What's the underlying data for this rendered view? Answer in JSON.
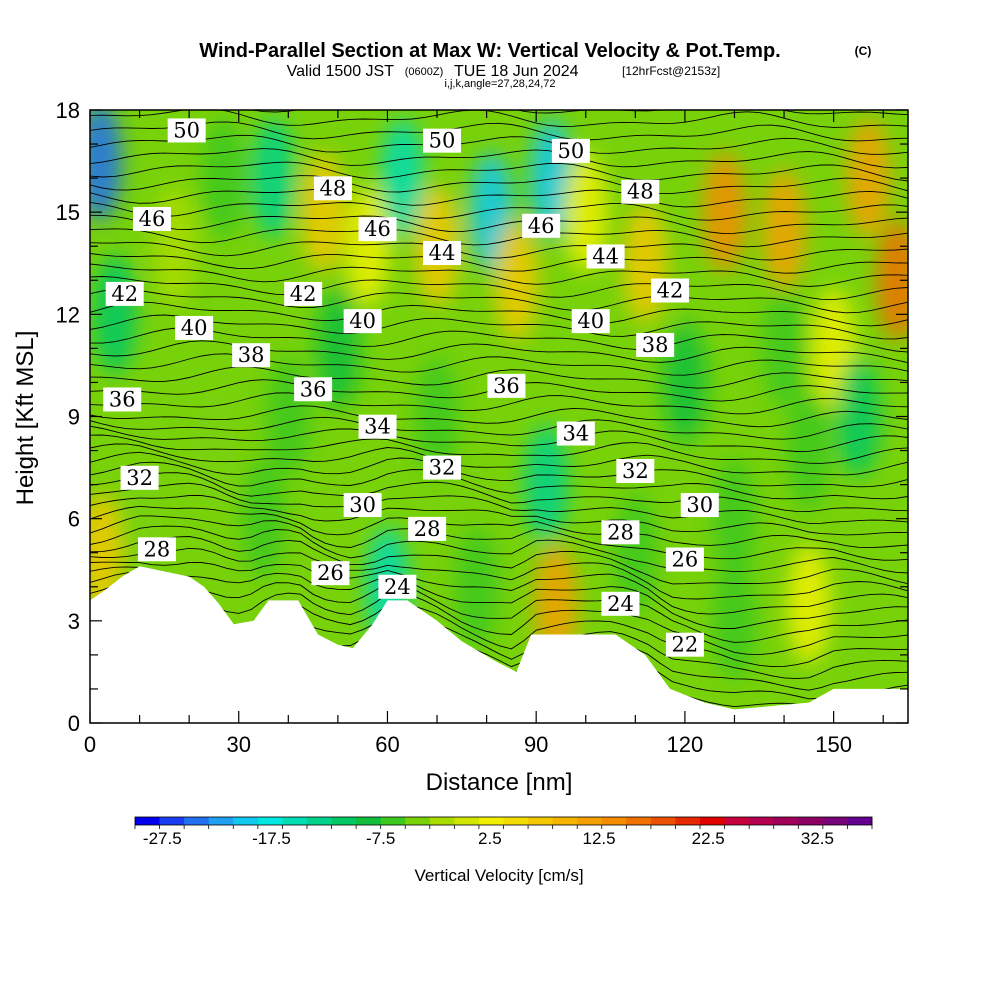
{
  "title": {
    "main": "Wind-Parallel Section at Max W: Vertical Velocity & Pot.Temp.",
    "copyright": "(C)",
    "valid_prefix": "Valid 1500 JST",
    "valid_utc": "(0600Z)",
    "valid_date": "TUE 18 Jun 2024",
    "forecast": "[12hrFcst@2153z]",
    "indices": "i,j,k,angle=27,28,24,72"
  },
  "chart_data": {
    "type": "contour-cross-section",
    "xlabel": "Distance [nm]",
    "ylabel": "Height [Kft MSL]",
    "xlim": [
      0,
      165
    ],
    "ylim": [
      0,
      18
    ],
    "xticks": [
      "0",
      "30",
      "60",
      "90",
      "120",
      "150"
    ],
    "xtick_values": [
      0,
      30,
      60,
      90,
      120,
      150
    ],
    "yticks": [
      "0",
      "3",
      "6",
      "9",
      "12",
      "15",
      "18"
    ],
    "ytick_values": [
      0,
      3,
      6,
      9,
      12,
      15,
      18
    ],
    "terrain_profile": [
      {
        "x": 0,
        "h": 3.6
      },
      {
        "x": 3,
        "h": 3.9
      },
      {
        "x": 6.5,
        "h": 4.3
      },
      {
        "x": 10,
        "h": 4.6
      },
      {
        "x": 20,
        "h": 4.3
      },
      {
        "x": 23,
        "h": 4.0
      },
      {
        "x": 26,
        "h": 3.5
      },
      {
        "x": 29,
        "h": 2.9
      },
      {
        "x": 33,
        "h": 3.0
      },
      {
        "x": 36,
        "h": 3.6
      },
      {
        "x": 42,
        "h": 3.6
      },
      {
        "x": 46,
        "h": 2.6
      },
      {
        "x": 50,
        "h": 2.3
      },
      {
        "x": 53,
        "h": 2.2
      },
      {
        "x": 57,
        "h": 2.9
      },
      {
        "x": 60,
        "h": 3.6
      },
      {
        "x": 64,
        "h": 3.6
      },
      {
        "x": 70,
        "h": 3.0
      },
      {
        "x": 75,
        "h": 2.4
      },
      {
        "x": 82,
        "h": 1.8
      },
      {
        "x": 86,
        "h": 1.5
      },
      {
        "x": 89,
        "h": 2.6
      },
      {
        "x": 95,
        "h": 2.6
      },
      {
        "x": 100,
        "h": 2.6
      },
      {
        "x": 106,
        "h": 2.6
      },
      {
        "x": 112,
        "h": 2.0
      },
      {
        "x": 117,
        "h": 1.0
      },
      {
        "x": 124,
        "h": 0.6
      },
      {
        "x": 130,
        "h": 0.4
      },
      {
        "x": 145,
        "h": 0.6
      },
      {
        "x": 150,
        "h": 1.0
      },
      {
        "x": 165,
        "h": 1.0
      }
    ],
    "theta_contours": {
      "interval": 1,
      "labels": [
        {
          "text": "50",
          "x": 19.5,
          "y": 17.4
        },
        {
          "text": "48",
          "x": 49,
          "y": 15.7
        },
        {
          "text": "46",
          "x": 12.5,
          "y": 14.8
        },
        {
          "text": "46",
          "x": 58,
          "y": 14.5
        },
        {
          "text": "44",
          "x": 71,
          "y": 13.8
        },
        {
          "text": "42",
          "x": 7,
          "y": 12.6
        },
        {
          "text": "42",
          "x": 43,
          "y": 12.6
        },
        {
          "text": "40",
          "x": 21,
          "y": 11.6
        },
        {
          "text": "40",
          "x": 55,
          "y": 11.8
        },
        {
          "text": "38",
          "x": 32.5,
          "y": 10.8
        },
        {
          "text": "36",
          "x": 6.5,
          "y": 9.5
        },
        {
          "text": "36",
          "x": 45,
          "y": 9.8
        },
        {
          "text": "34",
          "x": 58,
          "y": 8.7
        },
        {
          "text": "32",
          "x": 10,
          "y": 7.2
        },
        {
          "text": "32",
          "x": 71,
          "y": 7.5
        },
        {
          "text": "30",
          "x": 55,
          "y": 6.4
        },
        {
          "text": "28",
          "x": 13.5,
          "y": 5.1
        },
        {
          "text": "28",
          "x": 68,
          "y": 5.7
        },
        {
          "text": "26",
          "x": 48.5,
          "y": 4.4
        },
        {
          "text": "24",
          "x": 62,
          "y": 4.0
        },
        {
          "text": "50",
          "x": 71,
          "y": 17.1
        },
        {
          "text": "50",
          "x": 97,
          "y": 16.8
        },
        {
          "text": "48",
          "x": 111,
          "y": 15.6
        },
        {
          "text": "46",
          "x": 91,
          "y": 14.6
        },
        {
          "text": "44",
          "x": 104,
          "y": 13.7
        },
        {
          "text": "42",
          "x": 117,
          "y": 12.7
        },
        {
          "text": "40",
          "x": 101,
          "y": 11.8
        },
        {
          "text": "38",
          "x": 114,
          "y": 11.1
        },
        {
          "text": "36",
          "x": 84,
          "y": 9.9
        },
        {
          "text": "34",
          "x": 98,
          "y": 8.5
        },
        {
          "text": "32",
          "x": 110,
          "y": 7.4
        },
        {
          "text": "30",
          "x": 123,
          "y": 6.4
        },
        {
          "text": "28",
          "x": 107,
          "y": 5.6
        },
        {
          "text": "26",
          "x": 120,
          "y": 4.8
        },
        {
          "text": "24",
          "x": 107,
          "y": 3.5
        },
        {
          "text": "22",
          "x": 120,
          "y": 2.3
        }
      ]
    },
    "vertical_velocity_features": [
      {
        "x": 2,
        "y": 16.5,
        "w": -25
      },
      {
        "x": 5,
        "y": 12,
        "w": -10
      },
      {
        "x": 17,
        "y": 14,
        "w": 2
      },
      {
        "x": 27,
        "y": 16,
        "w": -3
      },
      {
        "x": 37,
        "y": 16,
        "w": -12
      },
      {
        "x": 47,
        "y": 15,
        "w": 10
      },
      {
        "x": 56,
        "y": 14,
        "w": 5
      },
      {
        "x": 63,
        "y": 16,
        "w": -15
      },
      {
        "x": 70,
        "y": 14,
        "w": 12
      },
      {
        "x": 81,
        "y": 15,
        "w": -18
      },
      {
        "x": 86,
        "y": 13,
        "w": 10
      },
      {
        "x": 93,
        "y": 16,
        "w": -18
      },
      {
        "x": 100,
        "y": 15,
        "w": 5
      },
      {
        "x": 112,
        "y": 13.5,
        "w": 10
      },
      {
        "x": 128,
        "y": 15,
        "w": 18
      },
      {
        "x": 140,
        "y": 14.5,
        "w": 17
      },
      {
        "x": 163,
        "y": 13,
        "w": 22
      },
      {
        "x": 157,
        "y": 16,
        "w": 15
      },
      {
        "x": 150,
        "y": 11,
        "w": 6
      },
      {
        "x": 120,
        "y": 10,
        "w": -6
      },
      {
        "x": 155,
        "y": 9,
        "w": -10
      },
      {
        "x": 145,
        "y": 8,
        "w": -5
      },
      {
        "x": 92,
        "y": 7,
        "w": -12
      },
      {
        "x": 70,
        "y": 9,
        "w": -3
      },
      {
        "x": 40,
        "y": 9,
        "w": -5
      },
      {
        "x": 25,
        "y": 8,
        "w": -2
      },
      {
        "x": 2,
        "y": 5,
        "w": 10
      },
      {
        "x": 10,
        "y": 6,
        "w": -2
      },
      {
        "x": 94,
        "y": 3.5,
        "w": 15
      },
      {
        "x": 60,
        "y": 4,
        "w": -15
      },
      {
        "x": 145,
        "y": 3.5,
        "w": 6
      },
      {
        "x": 130,
        "y": 3,
        "w": -4
      },
      {
        "x": 78,
        "y": 4,
        "w": -3
      },
      {
        "x": 110,
        "y": 5,
        "w": -4
      },
      {
        "x": 35,
        "y": 6,
        "w": -3
      },
      {
        "x": 50,
        "y": 11,
        "w": -6
      },
      {
        "x": 140,
        "y": 11,
        "w": -4
      },
      {
        "x": 130,
        "y": 6,
        "w": -5
      }
    ]
  },
  "colorbar": {
    "label": "Vertical Velocity [cm/s]",
    "min": -30,
    "max": 37.5,
    "step": 2.5,
    "tick_labels": [
      "-27.5",
      "-17.5",
      "-7.5",
      "2.5",
      "12.5",
      "22.5",
      "32.5"
    ],
    "tick_values": [
      -27.5,
      -17.5,
      -7.5,
      2.5,
      12.5,
      22.5,
      32.5
    ],
    "colors": [
      "#0000ee",
      "#1a3cf0",
      "#2070f0",
      "#1fa0f0",
      "#10c8f0",
      "#00e6e0",
      "#00dcb4",
      "#00d28c",
      "#00c864",
      "#10be3c",
      "#3cc81e",
      "#78d20a",
      "#aadc00",
      "#d2e600",
      "#f0f000",
      "#f5dc00",
      "#f5c800",
      "#f5b400",
      "#f5a000",
      "#f58c00",
      "#f07000",
      "#eb5000",
      "#e62800",
      "#e00000",
      "#c8003c",
      "#b40050",
      "#a0005a",
      "#8c0064",
      "#780078",
      "#640090"
    ]
  }
}
